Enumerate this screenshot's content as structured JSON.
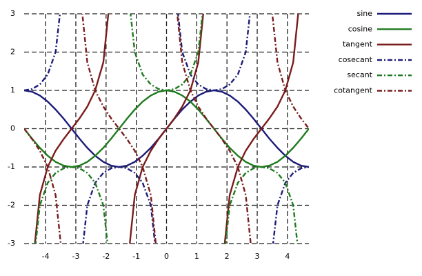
{
  "chart_data": {
    "type": "line",
    "x": [
      -4.71,
      -4.45,
      -4.19,
      -3.93,
      -3.67,
      -3.4,
      -3.14,
      -2.88,
      -2.62,
      -2.36,
      -2.09,
      -1.83,
      -1.57,
      -1.31,
      -1.05,
      -0.79,
      -0.52,
      -0.26,
      0,
      0.26,
      0.52,
      0.79,
      1.05,
      1.31,
      1.57,
      1.83,
      2.09,
      2.36,
      2.62,
      2.88,
      3.14,
      3.4,
      3.67,
      3.93,
      4.19,
      4.45,
      4.71
    ],
    "series": [
      {
        "name": "sine",
        "color": "#1c1c78",
        "style": "solid",
        "values": [
          1,
          0.966,
          0.866,
          0.707,
          0.5,
          0.259,
          0,
          -0.259,
          -0.5,
          -0.707,
          -0.866,
          -0.966,
          -1,
          -0.966,
          -0.866,
          -0.707,
          -0.5,
          -0.259,
          0,
          0.259,
          0.5,
          0.707,
          0.866,
          0.966,
          1,
          0.966,
          0.866,
          0.707,
          0.5,
          0.259,
          0,
          -0.259,
          -0.5,
          -0.707,
          -0.866,
          -0.966,
          -1
        ]
      },
      {
        "name": "cosine",
        "color": "#1e7a1e",
        "style": "solid",
        "values": [
          0,
          -0.259,
          -0.5,
          -0.707,
          -0.866,
          -0.966,
          -1,
          -0.966,
          -0.866,
          -0.707,
          -0.5,
          -0.259,
          0,
          0.259,
          0.5,
          0.707,
          0.866,
          0.966,
          1,
          0.966,
          0.866,
          0.707,
          0.5,
          0.259,
          0,
          -0.259,
          -0.5,
          -0.707,
          -0.866,
          -0.966,
          -1,
          -0.966,
          -0.866,
          -0.707,
          -0.5,
          -0.259,
          0
        ]
      },
      {
        "name": "tangent",
        "color": "#7a1c1c",
        "style": "solid",
        "values": [
          null,
          -3.732,
          -1.732,
          -1,
          -0.577,
          -0.268,
          0,
          0.268,
          0.577,
          1,
          1.732,
          3.732,
          null,
          -3.732,
          -1.732,
          -1,
          -0.577,
          -0.268,
          0,
          0.268,
          0.577,
          1,
          1.732,
          3.732,
          null,
          -3.732,
          -1.732,
          -1,
          -0.577,
          -0.268,
          0,
          0.268,
          0.577,
          1,
          1.732,
          3.732,
          null
        ]
      },
      {
        "name": "cosecant",
        "color": "#1c1c78",
        "style": "dashdot",
        "values": [
          1,
          1.035,
          1.155,
          1.414,
          2,
          3.864,
          null,
          -3.864,
          -2,
          -1.414,
          -1.155,
          -1.035,
          -1,
          -1.035,
          -1.155,
          -1.414,
          -2,
          -3.864,
          null,
          3.864,
          2,
          1.414,
          1.155,
          1.035,
          1,
          1.035,
          1.155,
          1.414,
          2,
          3.864,
          null,
          -3.864,
          -2,
          -1.414,
          -1.155,
          -1.035,
          -1
        ]
      },
      {
        "name": "secant",
        "color": "#1e7a1e",
        "style": "dashdot",
        "values": [
          null,
          -3.864,
          -2,
          -1.414,
          -1.155,
          -1.035,
          -1,
          -1.035,
          -1.155,
          -1.414,
          -2,
          -3.864,
          null,
          3.864,
          2,
          1.414,
          1.155,
          1.035,
          1,
          1.035,
          1.155,
          1.414,
          2,
          3.864,
          null,
          -3.864,
          -2,
          -1.414,
          -1.155,
          -1.035,
          -1,
          -1.035,
          -1.155,
          -1.414,
          -2,
          -3.864,
          null
        ]
      },
      {
        "name": "cotangent",
        "color": "#7a1c1c",
        "style": "dashdot",
        "values": [
          0,
          -0.268,
          -0.577,
          -1,
          -1.732,
          -3.732,
          null,
          3.732,
          1.732,
          1,
          0.577,
          0.268,
          0,
          -0.268,
          -0.577,
          -1,
          -1.732,
          -3.732,
          null,
          3.732,
          1.732,
          1,
          0.577,
          0.268,
          0,
          -0.268,
          -0.577,
          -1,
          -1.732,
          -3.732,
          null,
          3.732,
          1.732,
          1,
          0.577,
          0.268,
          0
        ]
      }
    ],
    "xlim": [
      -4.71,
      4.71
    ],
    "ylim": [
      -3,
      3
    ],
    "xticks": [
      -4,
      -3,
      -2,
      -1,
      0,
      1,
      2,
      3,
      4
    ],
    "yticks": [
      -3,
      -2,
      -1,
      0,
      1,
      2,
      3
    ],
    "grid": true,
    "legend": "right"
  }
}
